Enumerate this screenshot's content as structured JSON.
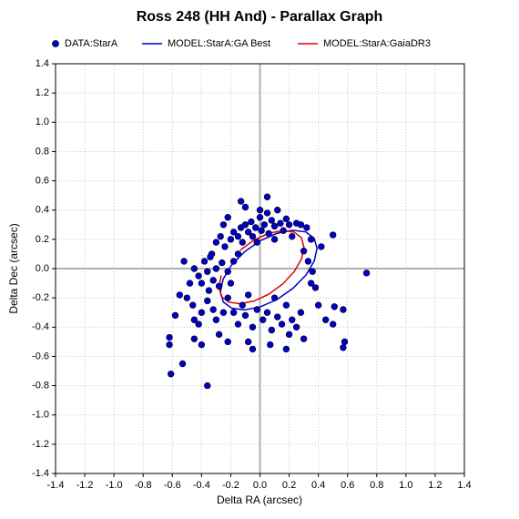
{
  "chart_data": {
    "type": "scatter",
    "title": "Ross 248 (HH And) - Parallax Graph",
    "x_label": "Delta RA (arcsec)",
    "y_label": "Delta Dec (arcsec)",
    "xlim": [
      -1.4,
      1.4
    ],
    "ylim": [
      -1.4,
      1.4
    ],
    "xticks": [
      -1.4,
      -1.2,
      {
        "value": -1,
        "label": "-1.0"
      },
      -0.8,
      -0.6,
      -0.4,
      -0.2,
      {
        "value": 0,
        "label": "0.0"
      },
      0.2,
      0.4,
      0.6,
      0.8,
      {
        "value": 1,
        "label": "1.0"
      },
      1.2,
      1.4
    ],
    "yticks": [
      -1.4,
      -1.2,
      {
        "value": -1,
        "label": "-1.0"
      },
      -0.8,
      -0.6,
      -0.4,
      -0.2,
      {
        "value": 0,
        "label": "0.0"
      },
      0.2,
      0.4,
      0.6,
      0.8,
      {
        "value": 1,
        "label": "1.0"
      },
      1.2,
      1.4
    ],
    "grid": true,
    "legend": "top",
    "series": [
      {
        "name": "DATA:StarA",
        "mode": "markers",
        "color": "#0000c8",
        "x": [
          -0.2,
          -0.18,
          -0.15,
          -0.13,
          -0.12,
          -0.1,
          -0.08,
          -0.06,
          -0.05,
          -0.03,
          0,
          0.01,
          0.03,
          0.05,
          0.06,
          0.08,
          0.1,
          0.12,
          0.14,
          0.16,
          0.18,
          0.2,
          0.22,
          0.25,
          0.28,
          0.32,
          0.35,
          0.05,
          -0.13,
          -0.1,
          0,
          -0.22,
          -0.25,
          -0.27,
          -0.24,
          -0.3,
          -0.33,
          0.3,
          0.33,
          0.36,
          0.35,
          0.38,
          0.4,
          -0.38,
          -0.36,
          -0.34,
          -0.32,
          -0.3,
          -0.28,
          -0.26,
          -0.35,
          -0.4,
          -0.42,
          -0.45,
          -0.48,
          -0.52,
          -0.5,
          -0.55,
          -0.46,
          -0.4,
          -0.36,
          -0.32,
          -0.3,
          -0.25,
          -0.22,
          -0.2,
          -0.18,
          -0.15,
          -0.12,
          -0.1,
          -0.08,
          -0.05,
          -0.02,
          0.02,
          0.05,
          0.08,
          0.12,
          0.15,
          0.18,
          0.2,
          0.22,
          0.25,
          0.28,
          0.3,
          0.1,
          -0.45,
          -0.42,
          -0.58,
          -0.28,
          -0.22,
          -0.08,
          -0.05,
          0.07,
          0.18,
          -0.4,
          -0.45,
          0.73,
          -0.36,
          -0.61,
          -0.53,
          -0.62,
          -0.62,
          0.57,
          0.58,
          0.51,
          0.57,
          0.5,
          0.45,
          0.5,
          -0.02,
          0.1,
          -0.15,
          -0.18,
          -0.22,
          0.42
        ],
        "values": [
          0.2,
          0.25,
          0.22,
          0.28,
          0.18,
          0.3,
          0.25,
          0.32,
          0.22,
          0.28,
          0.35,
          0.26,
          0.3,
          0.38,
          0.24,
          0.33,
          0.29,
          0.4,
          0.31,
          0.26,
          0.34,
          0.3,
          0.22,
          0.31,
          0.3,
          0.28,
          0.2,
          0.49,
          0.46,
          0.42,
          0.4,
          0.35,
          0.3,
          0.22,
          0.15,
          0.18,
          0.1,
          0.12,
          0.05,
          -0.02,
          -0.1,
          -0.13,
          -0.25,
          0.05,
          -0.02,
          0.08,
          -0.08,
          0,
          -0.12,
          0.04,
          -0.15,
          -0.1,
          -0.05,
          0,
          -0.1,
          0.05,
          -0.2,
          -0.18,
          -0.25,
          -0.3,
          -0.22,
          -0.28,
          -0.35,
          -0.3,
          -0.2,
          -0.1,
          -0.3,
          -0.38,
          -0.25,
          -0.32,
          -0.18,
          -0.4,
          -0.28,
          -0.35,
          -0.3,
          -0.42,
          -0.33,
          -0.38,
          -0.25,
          -0.45,
          -0.35,
          -0.4,
          -0.3,
          -0.48,
          -0.2,
          -0.35,
          -0.38,
          -0.32,
          -0.45,
          -0.5,
          -0.5,
          -0.55,
          -0.52,
          -0.55,
          -0.52,
          -0.48,
          -0.03,
          -0.8,
          -0.72,
          -0.65,
          -0.52,
          -0.47,
          -0.54,
          -0.5,
          -0.26,
          -0.28,
          0.23,
          -0.35,
          -0.38,
          0.18,
          0.2,
          0.1,
          0.05,
          -0.02,
          0.15
        ]
      },
      {
        "name": "MODEL:StarA:GA Best",
        "mode": "lines",
        "color": "#0000c8",
        "x": [
          0.371,
          0.313,
          0.224,
          0.116,
          0.001,
          -0.107,
          -0.196,
          -0.252,
          -0.271,
          -0.251,
          -0.193,
          -0.104,
          0.004,
          0.119,
          0.227,
          0.316,
          0.372,
          0.391,
          0.371
        ],
        "values": [
          0.208,
          0.251,
          0.262,
          0.241,
          0.19,
          0.114,
          0.023,
          -0.072,
          -0.159,
          -0.228,
          -0.271,
          -0.282,
          -0.261,
          -0.21,
          -0.134,
          -0.043,
          0.052,
          0.139,
          0.208
        ]
      },
      {
        "name": "MODEL:StarA:GaiaDR3",
        "mode": "lines",
        "color": "#e00000",
        "x": [
          -0.265,
          -0.281,
          -0.264,
          -0.213,
          -0.134,
          -0.039,
          0.062,
          0.157,
          0.235,
          0.285,
          0.301,
          0.284,
          0.233,
          0.154,
          0.059,
          -0.042,
          -0.137
        ],
        "values": [
          -0.047,
          -0.127,
          -0.191,
          -0.23,
          -0.24,
          -0.221,
          -0.174,
          -0.104,
          -0.02,
          0.067,
          0.147,
          0.211,
          0.25,
          0.26,
          0.241,
          0.194,
          0.124
        ]
      }
    ]
  }
}
